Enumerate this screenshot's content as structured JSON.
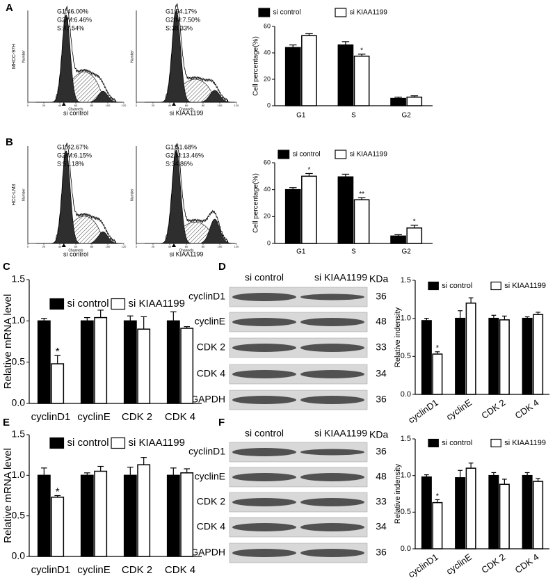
{
  "panel_labels": [
    "A",
    "B",
    "C",
    "D",
    "E",
    "F"
  ],
  "flow": [
    {
      "cell_line": "MHCC-97H",
      "ylabel": "Number",
      "xlabel": "Channels",
      "condition": "si control",
      "stats": [
        "G1:46.00%",
        "G2/M:6.46%",
        "S:47.54%"
      ],
      "xticks": [
        0,
        20,
        40,
        60,
        80,
        100,
        120
      ]
    },
    {
      "ylabel": "Number",
      "xlabel": "Channels",
      "condition": "si KIAA1199",
      "stats": [
        "G1:54.17%",
        "G2/M:7.50%",
        "S:38.33%"
      ],
      "xticks": [
        0,
        20,
        40,
        60,
        80,
        100,
        120
      ]
    },
    {
      "cell_line": "HCC-LM3",
      "ylabel": "Number",
      "xlabel": "Channels",
      "condition": "si control",
      "stats": [
        "G1:42.67%",
        "G2/M:6.15%",
        "S:51.18%"
      ],
      "xticks": [
        0,
        20,
        40,
        60,
        80,
        100,
        120
      ]
    },
    {
      "ylabel": "Number",
      "xlabel": "Channels",
      "condition": "si KIAA1199",
      "stats": [
        "G1:51.68%",
        "G2/M:13.46%",
        "S:34.86%"
      ],
      "xticks": [
        0,
        20,
        40,
        60,
        80,
        100,
        120
      ]
    }
  ],
  "blots": [
    {
      "lanes": [
        "si control",
        "si KIAA1199"
      ],
      "unit": "KDa",
      "proteins": [
        "cyclinD1",
        "cyclinE",
        "CDK 2",
        "CDK 4",
        "GAPDH"
      ],
      "sizes": [
        36,
        48,
        33,
        34,
        36
      ]
    },
    {
      "lanes": [
        "si control",
        "si KIAA1199"
      ],
      "unit": "KDa",
      "proteins": [
        "cyclinD1",
        "cyclinE",
        "CDK 2",
        "CDK 4",
        "GAPDH"
      ],
      "sizes": [
        36,
        48,
        33,
        34,
        36
      ]
    }
  ],
  "chart_data": [
    {
      "type": "bar",
      "ylabel": "Cell percentage(%)",
      "categories": [
        "G1",
        "S",
        "G2"
      ],
      "ylim": [
        0,
        60
      ],
      "yticks": [
        0,
        20,
        40,
        60
      ],
      "series": [
        {
          "name": "si control",
          "color": "#000000",
          "values": [
            44,
            46,
            5.5
          ],
          "errors": [
            2,
            2.5,
            1
          ]
        },
        {
          "name": "si KIAA1199",
          "color": "#ffffff",
          "values": [
            53,
            37.5,
            6.5
          ],
          "errors": [
            1.5,
            1.5,
            1
          ],
          "significance": [
            null,
            "*",
            null
          ]
        }
      ]
    },
    {
      "type": "bar",
      "ylabel": "Cell percentage(%)",
      "categories": [
        "G1",
        "S",
        "G2"
      ],
      "ylim": [
        0,
        60
      ],
      "yticks": [
        0,
        20,
        40,
        60
      ],
      "series": [
        {
          "name": "si control",
          "color": "#000000",
          "values": [
            40,
            49.5,
            5.5
          ],
          "errors": [
            1.5,
            2,
            1
          ]
        },
        {
          "name": "si KIAA1199",
          "color": "#ffffff",
          "values": [
            50,
            32.5,
            11.5
          ],
          "errors": [
            2,
            1.5,
            2
          ],
          "significance": [
            "*",
            "**",
            "*"
          ]
        }
      ]
    },
    {
      "type": "bar",
      "ylabel": "Relative mRNA level",
      "categories": [
        "cyclinD1",
        "cyclinE",
        "CDK 2",
        "CDK 4"
      ],
      "ylim": [
        0,
        1.5
      ],
      "yticks": [
        {
          "value": 0,
          "label": "0.0"
        },
        0.5,
        {
          "value": 1,
          "label": "1.0"
        },
        1.5
      ],
      "series": [
        {
          "name": "si control",
          "color": "#000000",
          "values": [
            1,
            1,
            1,
            1
          ],
          "errors": [
            0.03,
            0.04,
            0.06,
            0.11
          ]
        },
        {
          "name": "si KIAA1199",
          "color": "#ffffff",
          "values": [
            0.48,
            1.04,
            0.9,
            0.91
          ],
          "errors": [
            0.1,
            0.09,
            0.15,
            0.02
          ],
          "significance": [
            "*",
            null,
            null,
            null
          ]
        }
      ]
    },
    {
      "type": "bar",
      "ylabel": "Relative indensity",
      "categories": [
        "cyclinD1",
        "cyclinE",
        "CDK 2",
        "CDK 4"
      ],
      "ylim": [
        0,
        1.5
      ],
      "yticks": [
        {
          "value": 0,
          "label": "0.0"
        },
        0.5,
        {
          "value": 1,
          "label": "1.0"
        },
        1.5
      ],
      "series": [
        {
          "name": "si control",
          "color": "#000000",
          "values": [
            0.97,
            1,
            1,
            1
          ],
          "errors": [
            0.03,
            0.1,
            0.04,
            0.02
          ]
        },
        {
          "name": "si KIAA1199",
          "color": "#ffffff",
          "values": [
            0.53,
            1.2,
            0.98,
            1.05
          ],
          "errors": [
            0.03,
            0.07,
            0.05,
            0.03
          ],
          "significance": [
            "*",
            null,
            null,
            null
          ]
        }
      ]
    },
    {
      "type": "bar",
      "ylabel": "Relative mRNA level",
      "categories": [
        "cyclinD1",
        "cyclinE",
        "CDK 2",
        "CDK 4"
      ],
      "ylim": [
        0,
        1.5
      ],
      "yticks": [
        {
          "value": 0,
          "label": "0.0"
        },
        0.5,
        {
          "value": 1,
          "label": "1.0"
        },
        1.5
      ],
      "series": [
        {
          "name": "si control",
          "color": "#000000",
          "values": [
            1,
            1,
            1,
            1
          ],
          "errors": [
            0.09,
            0.03,
            0.1,
            0.09
          ]
        },
        {
          "name": "si KIAA1199",
          "color": "#ffffff",
          "values": [
            0.73,
            1.05,
            1.13,
            1.03
          ],
          "errors": [
            0.02,
            0.06,
            0.09,
            0.05
          ],
          "significance": [
            "*",
            null,
            null,
            null
          ]
        }
      ]
    },
    {
      "type": "bar",
      "ylabel": "Relative indensity",
      "categories": [
        "cyclinD1",
        "cyclinE",
        "CDK 2",
        "CDK 4"
      ],
      "ylim": [
        0,
        1.5
      ],
      "yticks": [
        {
          "value": 0,
          "label": "0.0"
        },
        0.5,
        {
          "value": 1,
          "label": "1.0"
        },
        1.5
      ],
      "series": [
        {
          "name": "si control",
          "color": "#000000",
          "values": [
            0.98,
            0.97,
            1,
            1
          ],
          "errors": [
            0.03,
            0.1,
            0.04,
            0.04
          ]
        },
        {
          "name": "si KIAA1199",
          "color": "#ffffff",
          "values": [
            0.63,
            1.1,
            0.88,
            0.92
          ],
          "errors": [
            0.04,
            0.07,
            0.07,
            0.04
          ],
          "significance": [
            "*",
            null,
            null,
            null
          ]
        }
      ]
    }
  ]
}
